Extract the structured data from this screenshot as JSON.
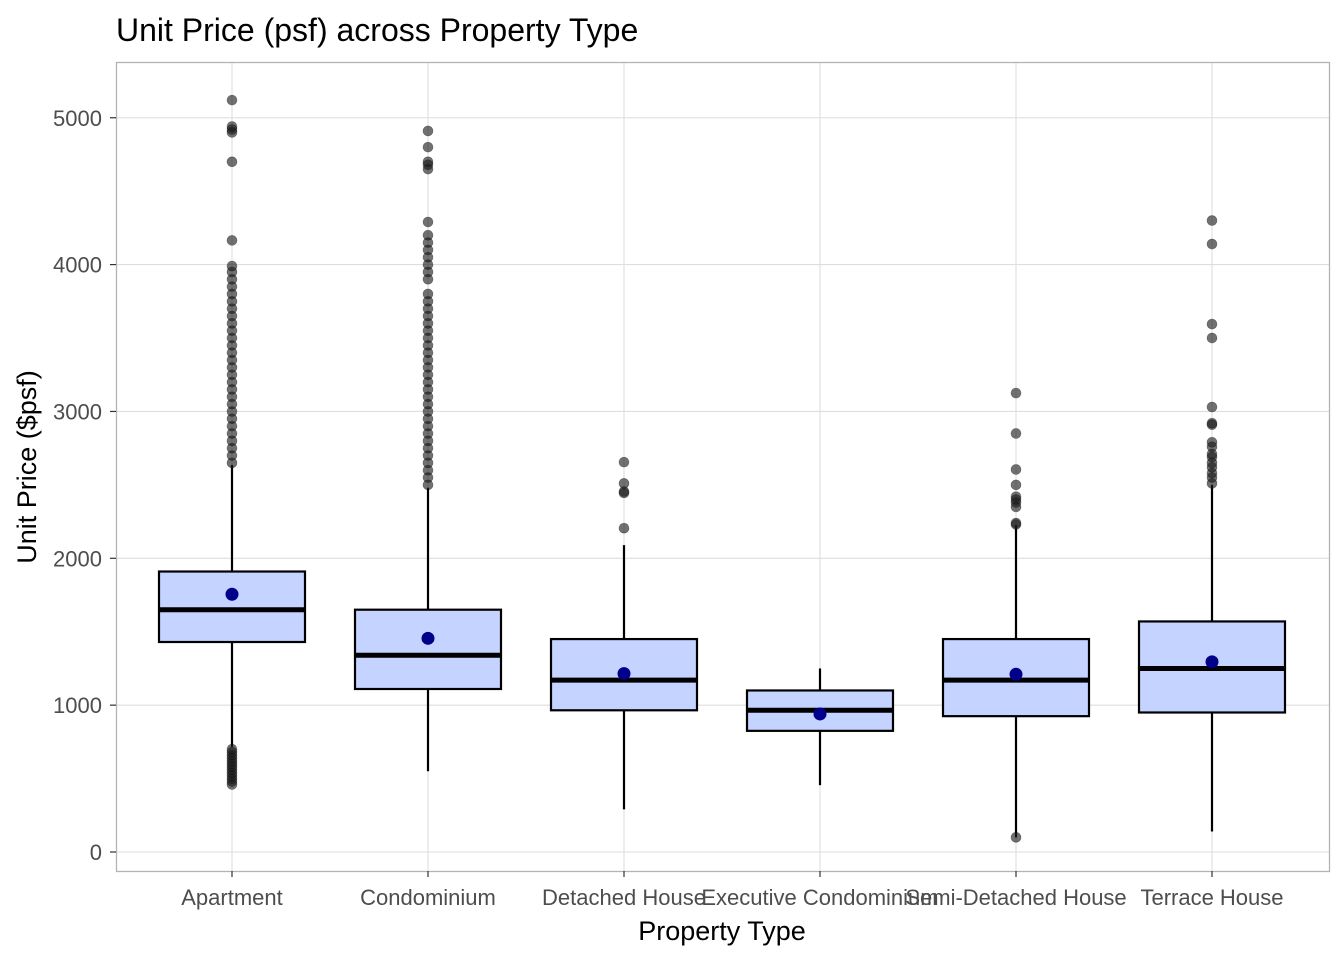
{
  "chart_data": {
    "type": "boxplot",
    "title": "Unit Price (psf) across Property Type",
    "xlabel": "Property Type",
    "ylabel": "Unit Price ($psf)",
    "ylim": [
      -150,
      5370
    ],
    "yticks": [
      0,
      1000,
      2000,
      3000,
      4000,
      5000
    ],
    "grid": true,
    "colors": {
      "box_fill": "#c4d3ff",
      "box_stroke": "#000000",
      "mean_point": "#00008b",
      "outlier": "#1a1a1a"
    },
    "categories": [
      "Apartment",
      "Condominium",
      "Detached House",
      "Executive Condominium",
      "Semi-Detached House",
      "Terrace House"
    ],
    "boxes": [
      {
        "category": "Apartment",
        "q1": 1430,
        "median": 1650,
        "q3": 1910,
        "whisker_low": 715,
        "whisker_high": 2635,
        "mean": 1755,
        "outliers": [
          460,
          480,
          500,
          520,
          540,
          560,
          580,
          600,
          620,
          640,
          660,
          680,
          700,
          2650,
          2700,
          2750,
          2800,
          2850,
          2900,
          2950,
          3000,
          3050,
          3100,
          3150,
          3200,
          3250,
          3300,
          3350,
          3400,
          3450,
          3500,
          3550,
          3600,
          3650,
          3700,
          3750,
          3800,
          3850,
          3900,
          3950,
          3990,
          4165,
          4700,
          4900,
          4920,
          4940,
          5120
        ]
      },
      {
        "category": "Condominium",
        "q1": 1110,
        "median": 1340,
        "q3": 1650,
        "whisker_low": 550,
        "whisker_high": 2480,
        "mean": 1455,
        "outliers": [
          2500,
          2550,
          2600,
          2650,
          2700,
          2750,
          2800,
          2850,
          2900,
          2950,
          3000,
          3050,
          3100,
          3150,
          3200,
          3250,
          3300,
          3350,
          3400,
          3450,
          3500,
          3550,
          3600,
          3650,
          3700,
          3750,
          3800,
          3900,
          3950,
          4000,
          4050,
          4100,
          4150,
          4200,
          4290,
          4650,
          4680,
          4700,
          4800,
          4910
        ]
      },
      {
        "category": "Detached House",
        "q1": 965,
        "median": 1170,
        "q3": 1450,
        "whisker_low": 290,
        "whisker_high": 2090,
        "mean": 1215,
        "outliers": [
          2205,
          2445,
          2455,
          2510,
          2655
        ]
      },
      {
        "category": "Executive Condominium",
        "q1": 825,
        "median": 965,
        "q3": 1100,
        "whisker_low": 455,
        "whisker_high": 1250,
        "mean": 940,
        "outliers": []
      },
      {
        "category": "Semi-Detached House",
        "q1": 925,
        "median": 1170,
        "q3": 1450,
        "whisker_low": 100,
        "whisker_high": 2225,
        "mean": 1210,
        "outliers": [
          100,
          2230,
          2240,
          2350,
          2380,
          2400,
          2420,
          2500,
          2605,
          2850,
          3125
        ]
      },
      {
        "category": "Terrace House",
        "q1": 950,
        "median": 1250,
        "q3": 1570,
        "whisker_low": 140,
        "whisker_high": 2500,
        "mean": 1295,
        "outliers": [
          2510,
          2550,
          2580,
          2620,
          2650,
          2690,
          2710,
          2760,
          2790,
          2910,
          2920,
          3030,
          3500,
          3595,
          4140,
          4300
        ]
      }
    ]
  }
}
